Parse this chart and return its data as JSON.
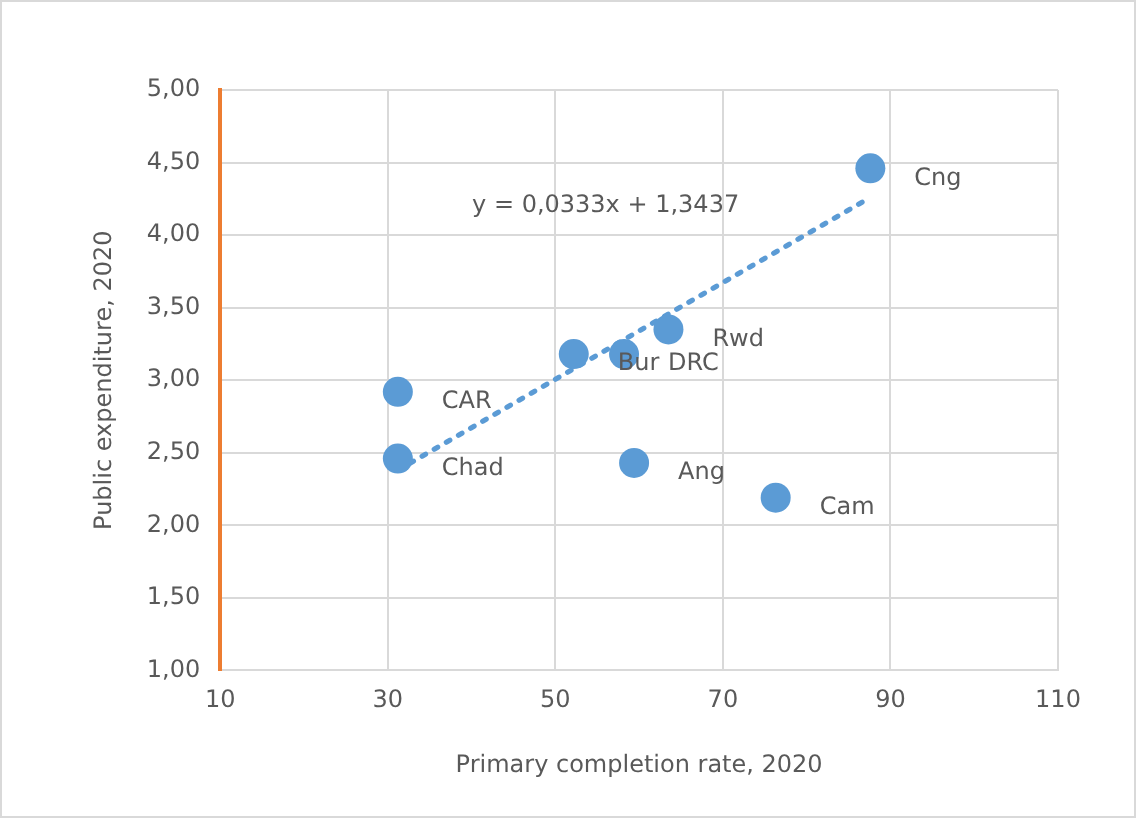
{
  "chart_data": {
    "type": "scatter",
    "xlabel": "Primary completion rate, 2020",
    "ylabel": "Public expenditure, 2020",
    "xlim": [
      10,
      110
    ],
    "xticks": [
      10,
      30,
      50,
      70,
      90,
      110
    ],
    "ylim": [
      1,
      5
    ],
    "yticks": [
      {
        "value": 1,
        "label": "1,00"
      },
      {
        "value": 1.5,
        "label": "1,50"
      },
      {
        "value": 2,
        "label": "2,00"
      },
      {
        "value": 2.5,
        "label": "2,50"
      },
      {
        "value": 3,
        "label": "3,00"
      },
      {
        "value": 3.5,
        "label": "3,50"
      },
      {
        "value": 4,
        "label": "4,00"
      },
      {
        "value": 4.5,
        "label": "4,50"
      },
      {
        "value": 5,
        "label": "5,00"
      }
    ],
    "grid": true,
    "legend": false,
    "marker": "circle",
    "series": [
      {
        "name": "CAR",
        "color": "#5b9bd5",
        "x": [
          31.2
        ],
        "values": [
          2.92
        ]
      },
      {
        "name": "Chad",
        "color": "#5b9bd5",
        "x": [
          31.2
        ],
        "values": [
          2.46
        ]
      },
      {
        "name": "Bur",
        "color": "#5b9bd5",
        "x": [
          52.2
        ],
        "values": [
          3.18
        ]
      },
      {
        "name": "DRC",
        "color": "#5b9bd5",
        "x": [
          58.2
        ],
        "values": [
          3.18
        ]
      },
      {
        "name": "Rwd",
        "color": "#5b9bd5",
        "x": [
          63.5
        ],
        "values": [
          3.35
        ]
      },
      {
        "name": "Ang",
        "color": "#5b9bd5",
        "x": [
          59.4
        ],
        "values": [
          2.43
        ]
      },
      {
        "name": "Cam",
        "color": "#5b9bd5",
        "x": [
          76.3
        ],
        "values": [
          2.19
        ]
      },
      {
        "name": "Cng",
        "color": "#5b9bd5",
        "x": [
          87.6
        ],
        "values": [
          4.46
        ]
      },
      {
        "type": "line",
        "color": "#5b9bd5",
        "line_style": "dotted",
        "marker": "none",
        "x": [
          31.2,
          87.6
        ],
        "values": [
          2.38,
          4.26
        ]
      }
    ],
    "annotations": [
      "y = 0,0333x + 1,3437"
    ]
  }
}
